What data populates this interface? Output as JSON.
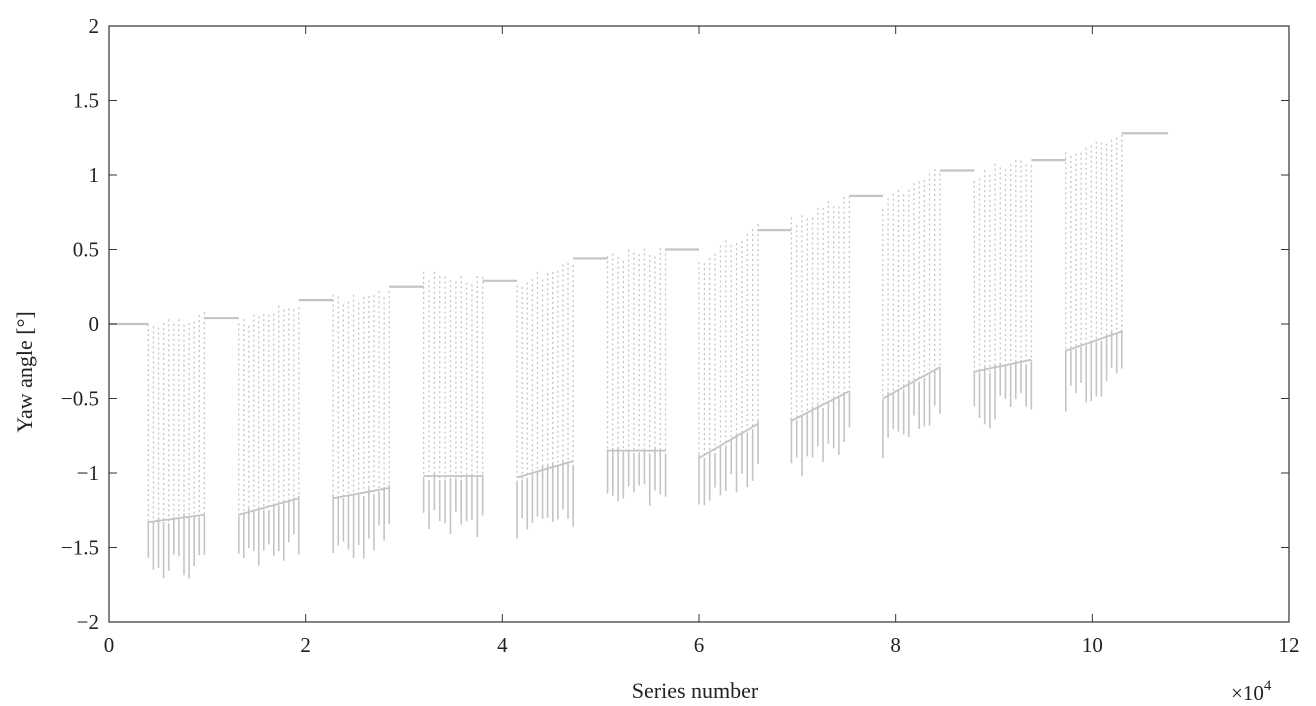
{
  "chart_data": {
    "type": "line",
    "title": "",
    "xlabel": "Series number",
    "ylabel": "Yaw angle [°]",
    "x_multiplier": {
      "base": "×10",
      "exponent": "4"
    },
    "xlim": [
      0,
      12
    ],
    "ylim": [
      -2,
      2
    ],
    "x_ticks": [
      0,
      2,
      4,
      6,
      8,
      10,
      12
    ],
    "y_ticks": [
      2,
      1.5,
      1,
      0.5,
      0,
      -0.5,
      -1,
      -1.5,
      -2
    ],
    "y_tick_labels": [
      "2",
      "1.5",
      "1",
      "0.5",
      "0",
      "−0.5",
      "−1",
      "−1.5",
      "−2"
    ],
    "grid": false,
    "line_color": "#c4c4c4",
    "plateaus": [
      {
        "x0": 0.0,
        "x1": 0.4,
        "y": 0.0
      },
      {
        "x0": 0.97,
        "x1": 1.32,
        "y": 0.04
      },
      {
        "x0": 1.93,
        "x1": 2.28,
        "y": 0.16
      },
      {
        "x0": 2.85,
        "x1": 3.2,
        "y": 0.25
      },
      {
        "x0": 3.8,
        "x1": 4.15,
        "y": 0.29
      },
      {
        "x0": 4.72,
        "x1": 5.07,
        "y": 0.44
      },
      {
        "x0": 5.66,
        "x1": 6.0,
        "y": 0.5
      },
      {
        "x0": 6.6,
        "x1": 6.94,
        "y": 0.63
      },
      {
        "x0": 7.53,
        "x1": 7.87,
        "y": 0.86
      },
      {
        "x0": 8.45,
        "x1": 8.8,
        "y": 1.03
      },
      {
        "x0": 9.38,
        "x1": 9.73,
        "y": 1.1
      },
      {
        "x0": 10.3,
        "x1": 10.77,
        "y": 1.28
      }
    ],
    "oscillation_segments": [
      {
        "x0": 0.4,
        "x1": 0.97,
        "top_start": 0.0,
        "top_end": 0.05,
        "bottom_start": -1.33,
        "bottom_end": -1.28,
        "min": -1.72,
        "max": 0.08
      },
      {
        "x0": 1.32,
        "x1": 1.93,
        "top_start": 0.0,
        "top_end": 0.13,
        "bottom_start": -1.28,
        "bottom_end": -1.17,
        "min": -1.68,
        "max": 0.14
      },
      {
        "x0": 2.28,
        "x1": 2.85,
        "top_start": 0.16,
        "top_end": 0.21,
        "bottom_start": -1.17,
        "bottom_end": -1.1,
        "min": -1.58,
        "max": 0.22
      },
      {
        "x0": 3.2,
        "x1": 3.8,
        "top_start": 0.33,
        "top_end": 0.3,
        "bottom_start": -1.02,
        "bottom_end": -1.02,
        "min": -1.43,
        "max": 0.35
      },
      {
        "x0": 4.15,
        "x1": 4.72,
        "top_start": 0.27,
        "top_end": 0.4,
        "bottom_start": -1.03,
        "bottom_end": -0.92,
        "min": -1.44,
        "max": 0.41
      },
      {
        "x0": 5.07,
        "x1": 5.66,
        "top_start": 0.45,
        "top_end": 0.48,
        "bottom_start": -0.85,
        "bottom_end": -0.85,
        "min": -1.27,
        "max": 0.51
      },
      {
        "x0": 6.0,
        "x1": 6.6,
        "top_start": 0.42,
        "top_end": 0.66,
        "bottom_start": -0.9,
        "bottom_end": -0.67,
        "min": -1.3,
        "max": 0.67
      },
      {
        "x0": 6.94,
        "x1": 7.53,
        "top_start": 0.68,
        "top_end": 0.85,
        "bottom_start": -0.65,
        "bottom_end": -0.45,
        "min": -1.05,
        "max": 0.86
      },
      {
        "x0": 7.87,
        "x1": 8.45,
        "top_start": 0.8,
        "top_end": 1.05,
        "bottom_start": -0.5,
        "bottom_end": -0.29,
        "min": -0.9,
        "max": 1.06
      },
      {
        "x0": 8.8,
        "x1": 9.38,
        "top_start": 1.0,
        "top_end": 1.1,
        "bottom_start": -0.32,
        "bottom_end": -0.24,
        "min": -0.7,
        "max": 1.1
      },
      {
        "x0": 9.73,
        "x1": 10.3,
        "top_start": 1.15,
        "top_end": 1.26,
        "bottom_start": -0.18,
        "bottom_end": -0.05,
        "min": -0.6,
        "max": 1.27
      }
    ]
  }
}
